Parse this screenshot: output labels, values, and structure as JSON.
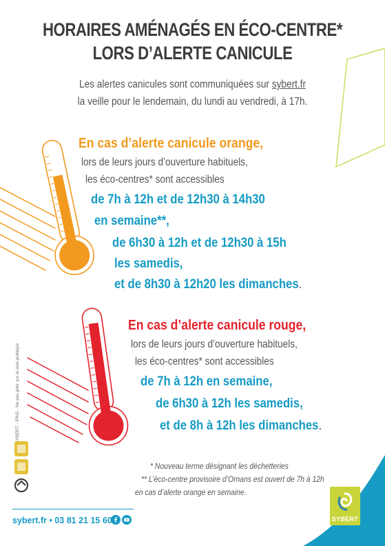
{
  "title": {
    "line1": "HORAIRES AMÉNAGÉS EN ÉCO-CENTRE*",
    "line2": "LORS D’ALERTE CANICULE"
  },
  "intro": {
    "line1_prefix": "Les alertes canicules sont communiquées sur ",
    "line1_link": "sybert.fr",
    "line2": "la veille pour le lendemain, du lundi au vendredi, à 17h."
  },
  "orange": {
    "heading": "En cas d’alerte canicule orange,",
    "text1": "lors de leurs jours d’ouverture habituels,",
    "text2": "les éco-centres* sont accessibles",
    "hours1": "de 7h à 12h et de 12h30 à 14h30",
    "hours2": "en semaine**,",
    "hours3": "de 6h30 à 12h et de 12h30 à 15h",
    "hours4": "les samedis,",
    "hours5": "et de 8h30 à 12h20 les dimanches",
    "end": "."
  },
  "red": {
    "heading": "En cas d’alerte canicule rouge,",
    "text1": "lors de leurs jours d’ouverture habituels,",
    "text2": "les éco-centres* sont accessibles",
    "hours1": "de 7h à 12h en semaine,",
    "hours2": "de 6h30 à 12h les samedis,",
    "hours3": "et de 8h à 12h les dimanches",
    "end": "."
  },
  "notes": {
    "note1": "* Nouveau terme désignant les déchetteries",
    "note2": "** L’éco-centre provisoire d’Ornans est ouvert de 7h à 12h",
    "note3": "en cas d’alerte orange en semaine."
  },
  "footer": {
    "contact": "sybert.fr • 03 81 21 15 60"
  },
  "side_text": "© SYBERT - IPNS - Ne pas jeter sur la voie publique",
  "logo": {
    "name": "SYBERT"
  },
  "colors": {
    "orange": "#f29a1f",
    "red": "#e3232d",
    "blue": "#169bc4",
    "lime": "#c8d53a"
  },
  "icons": [
    "thermometer-orange-icon",
    "thermometer-red-icon",
    "facebook-icon",
    "youtube-icon",
    "sybert-logo"
  ]
}
